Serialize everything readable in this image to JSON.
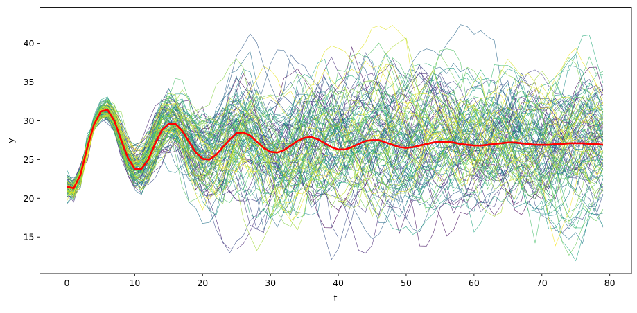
{
  "chart_data": {
    "type": "line",
    "title": "",
    "xlabel": "t",
    "ylabel": "y",
    "xlim": [
      -3.98,
      83.2
    ],
    "ylim": [
      10.28,
      44.66
    ],
    "xticks": [
      0,
      10,
      20,
      30,
      40,
      50,
      60,
      70,
      80
    ],
    "yticks": [
      15,
      20,
      25,
      30,
      35,
      40
    ],
    "grid": false,
    "legend": "none",
    "ensemble": {
      "count": 100,
      "colormap": "viridis",
      "line_width": 0.6,
      "description_of_values": "individual noisy trajectories around the mean series, spread roughly 13 to 43"
    },
    "mean_series": {
      "name": "mean",
      "color": "#ff0000",
      "x": [
        0,
        1,
        2,
        3,
        4,
        5,
        6,
        7,
        8,
        9,
        10,
        11,
        12,
        13,
        14,
        15,
        16,
        17,
        18,
        19,
        20,
        21,
        22,
        23,
        24,
        25,
        26,
        27,
        28,
        29,
        30,
        31,
        32,
        33,
        34,
        35,
        36,
        37,
        38,
        39,
        40,
        41,
        42,
        43,
        44,
        45,
        46,
        47,
        48,
        49,
        50,
        51,
        52,
        53,
        54,
        55,
        56,
        57,
        58,
        59,
        60,
        61,
        62,
        63,
        64,
        65,
        66,
        67,
        68,
        69,
        70,
        71,
        72,
        73,
        74,
        75,
        76,
        77,
        78,
        79
      ],
      "y": [
        21.5,
        21.3,
        23.0,
        26.5,
        29.5,
        31.2,
        31.4,
        30.0,
        27.5,
        25.2,
        23.8,
        23.8,
        25.0,
        27.0,
        28.8,
        29.6,
        29.6,
        28.7,
        27.3,
        25.9,
        25.1,
        25.0,
        25.6,
        26.6,
        27.6,
        28.4,
        28.5,
        28.1,
        27.3,
        26.5,
        26.0,
        25.9,
        26.2,
        26.8,
        27.4,
        27.8,
        27.9,
        27.6,
        27.1,
        26.6,
        26.3,
        26.3,
        26.6,
        27.0,
        27.4,
        27.5,
        27.5,
        27.2,
        26.9,
        26.6,
        26.5,
        26.6,
        26.8,
        27.0,
        27.2,
        27.3,
        27.3,
        27.2,
        27.0,
        26.9,
        26.8,
        26.8,
        26.9,
        27.0,
        27.1,
        27.2,
        27.2,
        27.1,
        27.0,
        26.9,
        26.9,
        26.9,
        27.0,
        27.0,
        27.1,
        27.1,
        27.1,
        27.0,
        27.0,
        26.9
      ]
    }
  }
}
